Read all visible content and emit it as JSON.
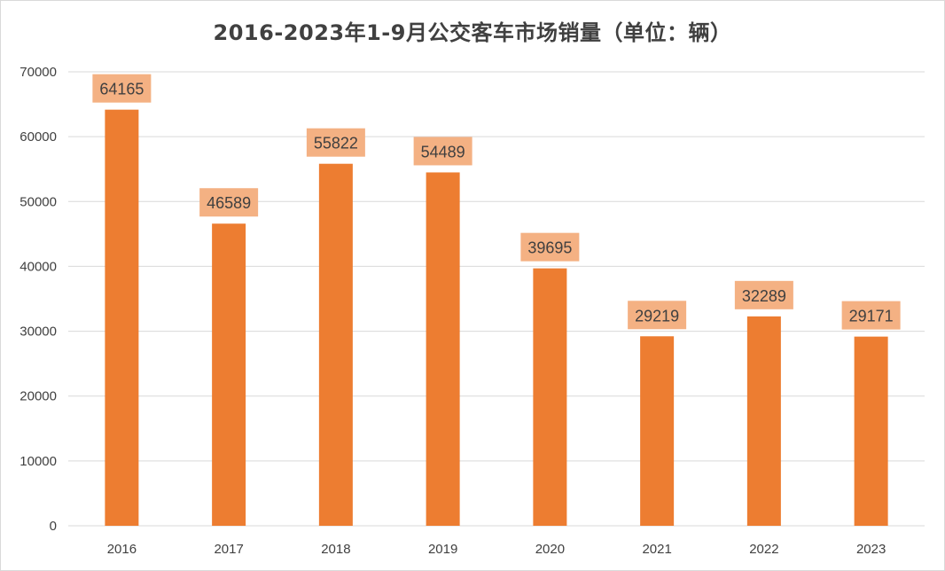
{
  "chart_data": {
    "type": "bar",
    "title": "2016-2023年1-9月公交客车市场销量（单位：辆）",
    "categories": [
      "2016",
      "2017",
      "2018",
      "2019",
      "2020",
      "2021",
      "2022",
      "2023"
    ],
    "values": [
      64165,
      46589,
      55822,
      54489,
      39695,
      29219,
      32289,
      29171
    ],
    "ylim": [
      0,
      70000
    ],
    "yticks": [
      0,
      10000,
      20000,
      30000,
      40000,
      50000,
      60000,
      70000
    ],
    "xlabel": "",
    "ylabel": "",
    "grid": true,
    "legend": "none",
    "colors": {
      "bar": "#ED7D31",
      "label_bg": "#F4B183",
      "grid": "#D9D9D9",
      "text": "#404040"
    }
  }
}
